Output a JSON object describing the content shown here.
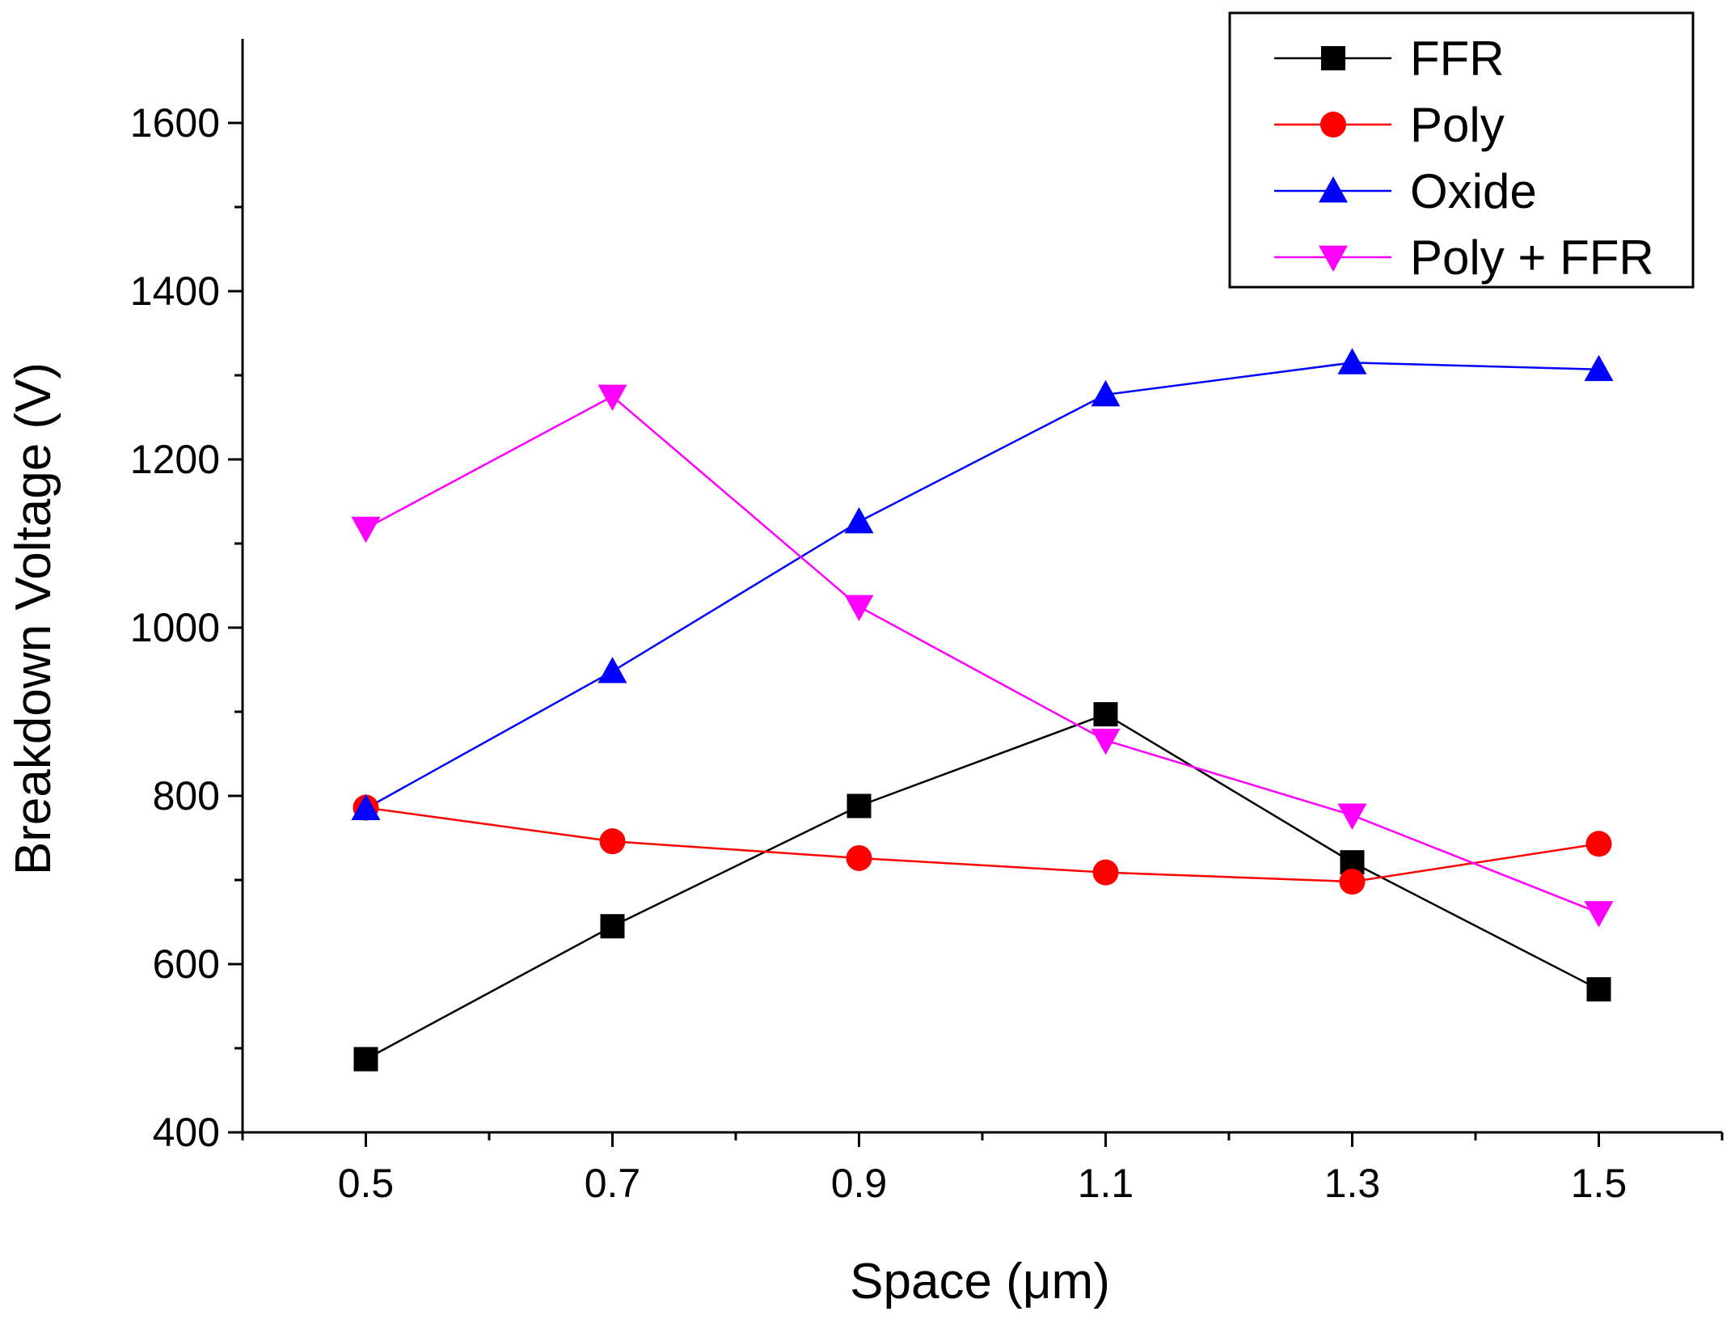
{
  "chart_data": {
    "type": "line",
    "title": "",
    "xlabel": "Space (μm)",
    "ylabel": "Breakdown Voltage (V)",
    "x": [
      0.5,
      0.7,
      0.9,
      1.1,
      1.3,
      1.5
    ],
    "xlim": [
      0.4,
      1.6
    ],
    "ylim": [
      400,
      1700
    ],
    "xticks": [
      0.5,
      0.7,
      0.9,
      1.1,
      1.3,
      1.5
    ],
    "xtick_labels": [
      "0.5",
      "0.7",
      "0.9",
      "1.1",
      "1.3",
      "1.5"
    ],
    "yticks": [
      400,
      600,
      800,
      1000,
      1200,
      1400,
      1600
    ],
    "ytick_labels": [
      "400",
      "600",
      "800",
      "1000",
      "1200",
      "1400",
      "1600"
    ],
    "grid": false,
    "legend_position": "top-right",
    "series": [
      {
        "name": "FFR",
        "color": "#000000",
        "marker": "square",
        "values": [
          487,
          645,
          788,
          897,
          721,
          570
        ]
      },
      {
        "name": "Poly",
        "color": "#ff0000",
        "marker": "circle",
        "values": [
          786,
          746,
          726,
          709,
          698,
          743
        ]
      },
      {
        "name": "Oxide",
        "color": "#0000ff",
        "marker": "triangle-up",
        "values": [
          785,
          948,
          1126,
          1277,
          1315,
          1307
        ]
      },
      {
        "name": "Poly + FFR",
        "color": "#ff00ff",
        "marker": "triangle-down",
        "values": [
          1118,
          1275,
          1025,
          866,
          777,
          661
        ]
      }
    ]
  }
}
